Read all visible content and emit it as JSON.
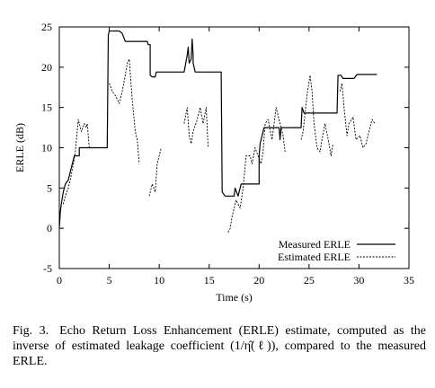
{
  "chart_data": {
    "type": "line",
    "xlabel": "Time (s)",
    "ylabel": "ERLE (dB)",
    "xlim": [
      0,
      35
    ],
    "ylim": [
      -5,
      25
    ],
    "xticks": [
      0,
      5,
      10,
      15,
      20,
      25,
      30,
      35
    ],
    "yticks": [
      -5,
      0,
      5,
      10,
      15,
      20,
      25
    ],
    "grid": false,
    "legend_position": "bottom-right",
    "series": [
      {
        "name": "Measured ERLE",
        "style": "solid",
        "segments": [
          [
            [
              0,
              0
            ],
            [
              0.1,
              2
            ],
            [
              0.2,
              3
            ],
            [
              0.4,
              4.5
            ],
            [
              0.6,
              5.5
            ],
            [
              0.9,
              6
            ],
            [
              1.2,
              7.5
            ],
            [
              1.5,
              9
            ],
            [
              2.0,
              9
            ],
            [
              2.0,
              10
            ],
            [
              4.8,
              10
            ],
            [
              4.9,
              24
            ],
            [
              5.0,
              24.5
            ],
            [
              6.0,
              24.5
            ],
            [
              6.3,
              24.2
            ],
            [
              6.6,
              23.2
            ],
            [
              8.8,
              23.2
            ],
            [
              8.9,
              22.8
            ],
            [
              9.1,
              22.8
            ],
            [
              9.1,
              19
            ],
            [
              9.3,
              18.8
            ],
            [
              9.6,
              18.8
            ],
            [
              9.7,
              19.4
            ],
            [
              12.5,
              19.4
            ],
            [
              12.8,
              21.5
            ],
            [
              12.9,
              22.5
            ],
            [
              13.0,
              20.5
            ],
            [
              13.2,
              21
            ],
            [
              13.3,
              23.5
            ],
            [
              13.4,
              21.5
            ],
            [
              13.4,
              20.5
            ],
            [
              13.6,
              19.4
            ],
            [
              16.2,
              19.4
            ],
            [
              16.3,
              4.5
            ],
            [
              16.6,
              4
            ],
            [
              17.5,
              4
            ],
            [
              17.6,
              5
            ],
            [
              17.9,
              4
            ],
            [
              18.2,
              5.5
            ],
            [
              20.0,
              5.5
            ],
            [
              20.0,
              9
            ],
            [
              20.1,
              10.5
            ],
            [
              20.3,
              11.5
            ],
            [
              20.5,
              12.5
            ],
            [
              22.0,
              12.5
            ],
            [
              22.1,
              11
            ],
            [
              22.2,
              12.5
            ],
            [
              24.2,
              12.5
            ],
            [
              24.3,
              15
            ],
            [
              24.5,
              14.3
            ],
            [
              27.8,
              14.3
            ],
            [
              27.9,
              19
            ],
            [
              28.2,
              19
            ],
            [
              28.4,
              18.6
            ],
            [
              29.5,
              18.6
            ],
            [
              29.8,
              19.1
            ],
            [
              31.8,
              19.1
            ]
          ]
        ]
      },
      {
        "name": "Estimated ERLE",
        "style": "dashed",
        "segments": [
          [
            [
              0.4,
              3
            ],
            [
              0.6,
              4
            ],
            [
              0.9,
              5
            ],
            [
              1.1,
              6
            ],
            [
              1.4,
              8
            ],
            [
              1.6,
              9.5
            ],
            [
              1.9,
              13.5
            ],
            [
              2.2,
              12
            ],
            [
              2.5,
              13
            ],
            [
              2.7,
              12.5
            ],
            [
              2.8,
              13
            ],
            [
              3.0,
              10
            ]
          ],
          [
            [
              5.0,
              18
            ],
            [
              5.3,
              17
            ],
            [
              5.6,
              16.5
            ],
            [
              6.0,
              15.5
            ],
            [
              6.3,
              17
            ],
            [
              6.6,
              19
            ],
            [
              6.8,
              20.5
            ],
            [
              7.0,
              21
            ],
            [
              7.3,
              16
            ],
            [
              7.6,
              12
            ],
            [
              7.8,
              11
            ],
            [
              8.0,
              8
            ]
          ],
          [
            [
              9.0,
              4
            ],
            [
              9.3,
              5.5
            ],
            [
              9.6,
              4.5
            ],
            [
              9.8,
              8
            ],
            [
              10.2,
              10
            ]
          ],
          [
            [
              12.5,
              13
            ],
            [
              12.8,
              15
            ],
            [
              13.0,
              11.5
            ],
            [
              13.2,
              10.5
            ],
            [
              13.4,
              12
            ],
            [
              13.8,
              13.5
            ],
            [
              14.1,
              15
            ],
            [
              14.4,
              13
            ],
            [
              14.7,
              15
            ],
            [
              14.9,
              10
            ]
          ],
          [
            [
              16.9,
              -0.5
            ],
            [
              17.1,
              0
            ],
            [
              17.3,
              1.5
            ],
            [
              17.5,
              2.5
            ],
            [
              17.7,
              3.5
            ],
            [
              17.9,
              3
            ],
            [
              18.1,
              2.5
            ],
            [
              18.4,
              5
            ],
            [
              18.7,
              9
            ],
            [
              19.1,
              9
            ],
            [
              19.3,
              8
            ],
            [
              19.6,
              10
            ],
            [
              19.9,
              9
            ],
            [
              20.2,
              8
            ],
            [
              20.4,
              9.5
            ],
            [
              20.6,
              13
            ],
            [
              20.9,
              13.5
            ],
            [
              21.3,
              11
            ],
            [
              21.7,
              15
            ],
            [
              22.1,
              13
            ],
            [
              22.4,
              11.5
            ],
            [
              22.6,
              9.5
            ]
          ],
          [
            [
              24.2,
              11
            ],
            [
              24.4,
              12
            ],
            [
              24.8,
              16.5
            ],
            [
              25.1,
              19
            ],
            [
              25.3,
              17
            ],
            [
              25.5,
              13
            ],
            [
              25.8,
              10
            ],
            [
              26.1,
              9.5
            ],
            [
              26.3,
              11
            ],
            [
              26.6,
              13
            ],
            [
              27.0,
              10.5
            ],
            [
              27.2,
              9
            ],
            [
              27.4,
              10.5
            ]
          ],
          [
            [
              28.1,
              17
            ],
            [
              28.3,
              18
            ],
            [
              28.5,
              15
            ],
            [
              28.8,
              11.5
            ],
            [
              29.0,
              13
            ],
            [
              29.4,
              13.8
            ],
            [
              29.7,
              11
            ],
            [
              30.1,
              11.5
            ],
            [
              30.4,
              10
            ],
            [
              30.7,
              10.5
            ],
            [
              31.0,
              12
            ],
            [
              31.3,
              13.5
            ],
            [
              31.6,
              13
            ]
          ]
        ]
      }
    ]
  },
  "caption": {
    "label": "Fig. 3.",
    "text": "Echo Return Loss Enhancement (ERLE) estimate, computed as the inverse of estimated leakage coefficient (1/η̂(ℓ)), compared to the measured ERLE."
  }
}
